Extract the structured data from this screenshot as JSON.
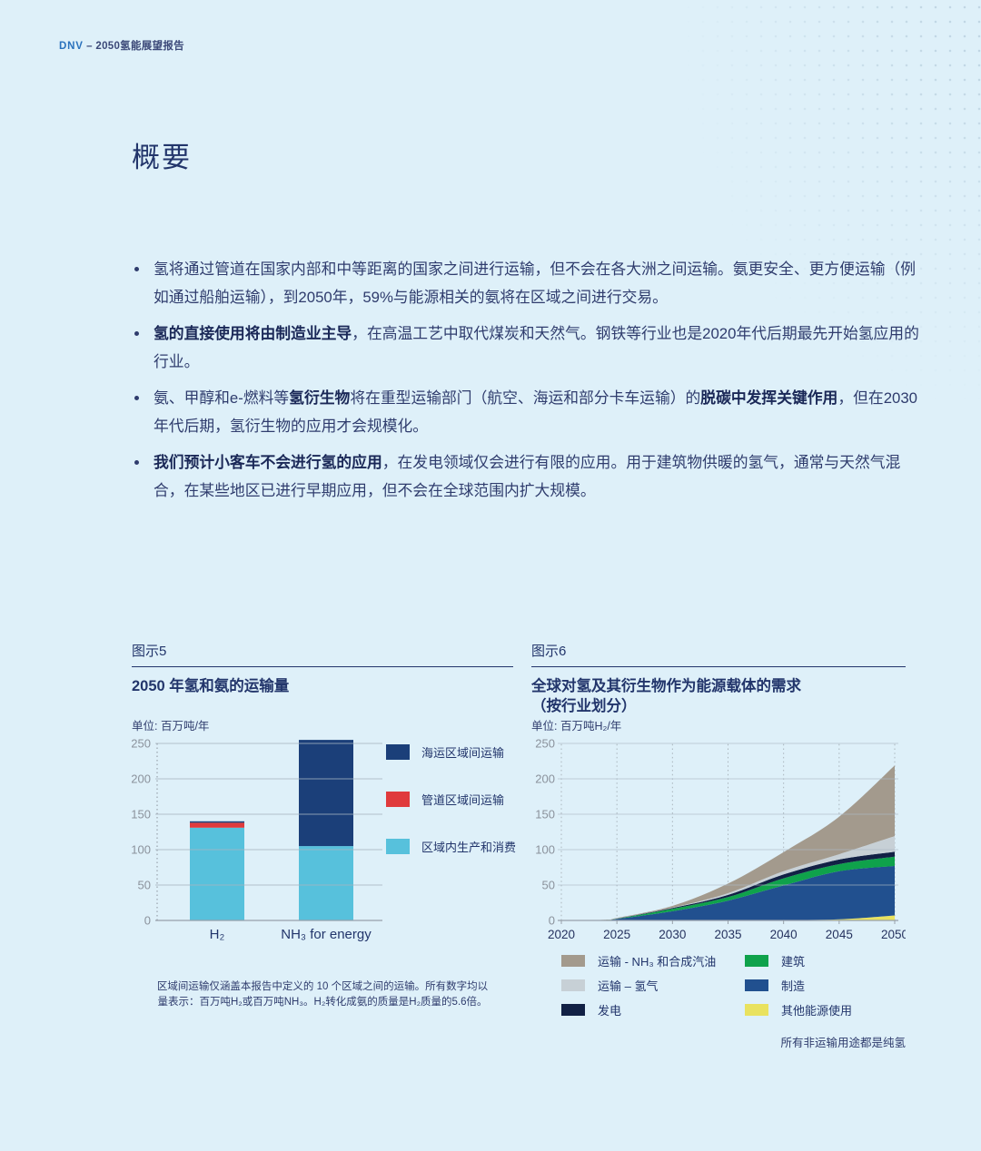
{
  "header": {
    "brand": "DNV",
    "rest": " – 2050氢能展望报告"
  },
  "title": "概要",
  "bullets": [
    {
      "segments": [
        {
          "t": "氢将通过管道在国家内部和中等距离的国家之间进行运输，但不会在各大洲之间运输。氨更安全、更方便运输（例如通过船舶运输），到2050年，59%与能源相关的氨将在区域之间进行交易。",
          "b": false
        }
      ]
    },
    {
      "segments": [
        {
          "t": "氢的直接使用将由制造业主导",
          "b": true
        },
        {
          "t": "，在高温工艺中取代煤炭和天然气。钢铁等行业也是2020年代后期最先开始氢应用的行业。",
          "b": false
        }
      ]
    },
    {
      "segments": [
        {
          "t": "氨、甲醇和e-燃料等",
          "b": false
        },
        {
          "t": "氢衍生物",
          "b": true
        },
        {
          "t": "将在重型运输部门（航空、海运和部分卡车运输）的",
          "b": false
        },
        {
          "t": "脱碳中发挥关键作用",
          "b": true
        },
        {
          "t": "，但在2030年代后期，氢衍生物的应用才会规模化。",
          "b": false
        }
      ]
    },
    {
      "segments": [
        {
          "t": "我们预计小客车不会进行氢的应用",
          "b": true
        },
        {
          "t": "，在发电领域仅会进行有限的应用。用于建筑物供暖的氢气，通常与天然气混合，在某些地区已进行早期应用，但不会在全球范围内扩大规模。",
          "b": false
        }
      ]
    }
  ],
  "chart_data": [
    {
      "type": "bar",
      "label": "图示5",
      "title": "2050 年氢和氨的运输量",
      "unit": "单位: 百万吨/年",
      "categories": [
        "H₂",
        "NH₃ for energy"
      ],
      "series": [
        {
          "name": "区域内生产和消费",
          "color": "#57c1dc",
          "values": [
            131,
            105
          ]
        },
        {
          "name": "管道区域间运输",
          "color": "#e03a3c",
          "values": [
            7,
            0
          ]
        },
        {
          "name": "海运区域间运输",
          "color": "#1b3f79",
          "values": [
            2,
            150
          ]
        }
      ],
      "legend_order": [
        "海运区域间运输",
        "管道区域间运输",
        "区域内生产和消费"
      ],
      "ylim": [
        0,
        250
      ],
      "yticks": [
        0,
        50,
        100,
        150,
        200,
        250
      ],
      "footnote": "区域间运输仅涵盖本报告中定义的 10 个区域之间的运输。所有数字均以量表示：百万吨H₂或百万吨NH₃。H₂转化成氨的质量是H₂质量的5.6倍。"
    },
    {
      "type": "area",
      "label": "图示6",
      "title": "全球对氢及其衍生物作为能源载体的需求",
      "subtitle": "（按行业划分）",
      "unit": "单位: 百万吨H₂/年",
      "x": [
        2020,
        2024,
        2025,
        2030,
        2035,
        2040,
        2045,
        2050
      ],
      "xticks": [
        2020,
        2025,
        2030,
        2035,
        2040,
        2045,
        2050
      ],
      "ylim": [
        0,
        250
      ],
      "yticks": [
        0,
        50,
        100,
        150,
        200,
        250
      ],
      "series": [
        {
          "name": "其他能源使用",
          "color": "#e9e25f",
          "values": [
            0,
            0,
            0,
            0,
            0,
            0.5,
            1.5,
            7
          ]
        },
        {
          "name": "制造",
          "color": "#21508f",
          "values": [
            0,
            0.6,
            2,
            13,
            28,
            49,
            68,
            70
          ]
        },
        {
          "name": "建筑",
          "color": "#0fa24b",
          "values": [
            0,
            0.1,
            0.4,
            3.5,
            5,
            10,
            10,
            13
          ]
        },
        {
          "name": "发电",
          "color": "#122145",
          "values": [
            0,
            0,
            0.2,
            1,
            3,
            5.5,
            6.5,
            7
          ]
        },
        {
          "name": "运输 – 氢气",
          "color": "#c7d0d6",
          "values": [
            0,
            0,
            0.2,
            0.5,
            2.5,
            4.5,
            7.5,
            22
          ]
        },
        {
          "name": "运输 - NH₃ 和合成汽油",
          "color": "#a39a8d",
          "values": [
            0,
            0.2,
            0.7,
            2.5,
            13.5,
            27,
            53,
            100
          ]
        }
      ],
      "legend_left": [
        "运输 - NH₃ 和合成汽油",
        "运输 – 氢气",
        "发电"
      ],
      "legend_right": [
        "建筑",
        "制造",
        "其他能源使用"
      ],
      "note": "所有非运输用途都是纯氢"
    }
  ]
}
